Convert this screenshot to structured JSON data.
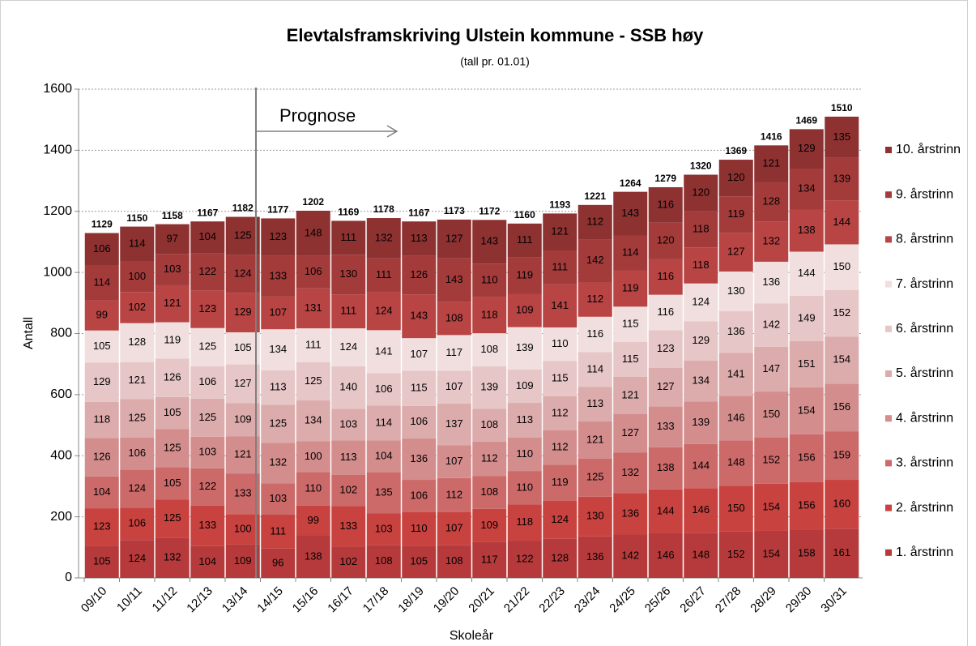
{
  "chart_data": {
    "type": "stacked_bar",
    "title": "Elevtalsframskriving Ulstein kommune - SSB høy",
    "subtitle": "(tall pr. 01.01)",
    "x_label": "Skoleår",
    "y_label": "Antall",
    "annotation": "Prognose",
    "categories": [
      "09/10",
      "10/11",
      "11/12",
      "12/13",
      "13/14",
      "14/15",
      "15/16",
      "16/17",
      "17/18",
      "18/19",
      "19/20",
      "20/21",
      "21/22",
      "22/23",
      "23/24",
      "24/25",
      "25/26",
      "26/27",
      "27/28",
      "28/29",
      "29/30",
      "30/31"
    ],
    "series": [
      {
        "name": "1. årstrinn",
        "color": "#b63a3b",
        "values": [
          105,
          124,
          132,
          104,
          109,
          96,
          138,
          102,
          108,
          105,
          108,
          117,
          122,
          128,
          136,
          142,
          146,
          148,
          152,
          154,
          158,
          161
        ]
      },
      {
        "name": "2. årstrinn",
        "color": "#c8423f",
        "values": [
          123,
          106,
          125,
          133,
          100,
          111,
          99,
          133,
          103,
          110,
          107,
          109,
          118,
          124,
          130,
          136,
          144,
          146,
          150,
          154,
          156,
          160
        ]
      },
      {
        "name": "3. årstrinn",
        "color": "#cc6a6a",
        "values": [
          104,
          124,
          105,
          122,
          133,
          103,
          110,
          102,
          135,
          106,
          112,
          108,
          110,
          119,
          125,
          132,
          138,
          144,
          148,
          152,
          156,
          159
        ]
      },
      {
        "name": "4. årstrinn",
        "color": "#d38d8d",
        "values": [
          126,
          106,
          125,
          103,
          121,
          132,
          100,
          113,
          104,
          136,
          107,
          112,
          110,
          112,
          121,
          127,
          133,
          139,
          146,
          150,
          154,
          156
        ]
      },
      {
        "name": "5. årstrinn",
        "color": "#dcabab",
        "values": [
          118,
          125,
          105,
          125,
          109,
          125,
          134,
          103,
          114,
          106,
          137,
          108,
          113,
          112,
          113,
          121,
          127,
          134,
          141,
          147,
          151,
          154
        ]
      },
      {
        "name": "6. årstrinn",
        "color": "#e6c6c6",
        "values": [
          129,
          121,
          126,
          106,
          127,
          113,
          125,
          140,
          106,
          115,
          107,
          139,
          109,
          115,
          114,
          115,
          123,
          129,
          136,
          142,
          149,
          152
        ]
      },
      {
        "name": "7. årstrinn",
        "color": "#f1dfdf",
        "values": [
          105,
          128,
          119,
          125,
          105,
          134,
          111,
          124,
          141,
          107,
          117,
          108,
          139,
          110,
          116,
          115,
          116,
          124,
          130,
          136,
          144,
          150
        ]
      },
      {
        "name": "8. årstrinn",
        "color": "#b84444",
        "values": [
          99,
          102,
          121,
          123,
          129,
          107,
          131,
          111,
          124,
          143,
          108,
          118,
          109,
          141,
          112,
          119,
          116,
          118,
          127,
          132,
          138,
          144
        ]
      },
      {
        "name": "9. årstrinn",
        "color": "#a33b3b",
        "values": [
          114,
          100,
          103,
          122,
          124,
          133,
          106,
          130,
          111,
          126,
          143,
          110,
          119,
          111,
          142,
          114,
          120,
          118,
          119,
          128,
          134,
          139
        ]
      },
      {
        "name": "10. årstrinn",
        "color": "#8e3131",
        "values": [
          106,
          114,
          97,
          104,
          125,
          123,
          148,
          111,
          132,
          113,
          127,
          143,
          111,
          121,
          112,
          143,
          116,
          120,
          120,
          121,
          129,
          135
        ]
      }
    ],
    "totals": [
      1129,
      1150,
      1158,
      1167,
      1182,
      1177,
      1202,
      1169,
      1178,
      1167,
      1173,
      1172,
      1160,
      1193,
      1221,
      1264,
      1279,
      1320,
      1369,
      1416,
      1469,
      1510
    ],
    "ylim": [
      0,
      1600
    ],
    "yticks": [
      0,
      200,
      400,
      600,
      800,
      1000,
      1200,
      1400,
      1600
    ],
    "grid": true,
    "legend": "right"
  }
}
